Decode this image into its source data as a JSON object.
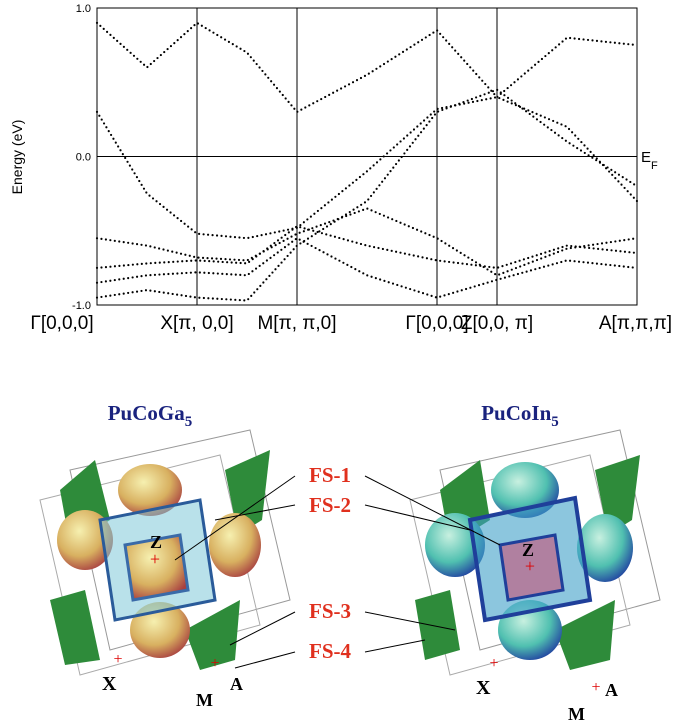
{
  "chart_data": {
    "type": "line",
    "y_label": "Energy (eV)",
    "annotation": {
      "main": "E",
      "sub": "F"
    },
    "x": [
      0,
      0.5,
      1,
      1.5,
      2,
      2.7,
      3.4,
      4,
      4.7,
      5.4
    ],
    "xlim": [
      0,
      5.4
    ],
    "xticks": [
      {
        "value": 0,
        "label": "Γ[0,0,0]"
      },
      {
        "value": 1,
        "label": "X[π, 0,0]"
      },
      {
        "value": 2,
        "label": "M[π, π,0]"
      },
      {
        "value": 3.4,
        "label": "Γ[0,0,0]"
      },
      {
        "value": 4,
        "label": "Z[0,0, π]"
      },
      {
        "value": 5.4,
        "label": "A[π,π,π]"
      }
    ],
    "ylim": [
      -1,
      1
    ],
    "yticks": [
      {
        "value": 1,
        "label": "1.0"
      },
      {
        "value": 0,
        "label": "0.0"
      },
      {
        "value": -1,
        "label": "-1.0"
      }
    ],
    "color": "#000000",
    "series": [
      {
        "values": [
          0.3,
          -0.25,
          -0.52,
          -0.55,
          -0.48,
          -0.1,
          0.32,
          0.4,
          0.2,
          -0.3
        ]
      },
      {
        "values": [
          -0.55,
          -0.6,
          -0.68,
          -0.7,
          -0.52,
          -0.35,
          -0.55,
          -0.8,
          -0.62,
          -0.55
        ]
      },
      {
        "values": [
          -0.75,
          -0.72,
          -0.7,
          -0.72,
          -0.47,
          -0.6,
          -0.7,
          -0.75,
          -0.6,
          -0.65
        ]
      },
      {
        "values": [
          -0.85,
          -0.8,
          -0.78,
          -0.8,
          -0.55,
          -0.8,
          -0.95,
          -0.83,
          -0.7,
          -0.75
        ]
      },
      {
        "values": [
          0.9,
          0.6,
          0.9,
          0.7,
          0.3,
          0.55,
          0.85,
          0.4,
          0.8,
          0.75
        ]
      },
      {
        "values": [
          -0.95,
          -0.9,
          -0.95,
          -0.97,
          -0.6,
          -0.3,
          0.3,
          0.45,
          0.1,
          -0.2
        ]
      }
    ]
  },
  "fermi_panels": [
    {
      "title": "PuCoGa",
      "title_sub": "5",
      "points": [
        "Z",
        "X",
        "M",
        "A"
      ]
    },
    {
      "title": "PuCoIn",
      "title_sub": "5",
      "points": [
        "Z",
        "X",
        "M",
        "A"
      ]
    }
  ],
  "surface_labels": [
    "FS-1",
    "FS-2",
    "FS-3",
    "FS-4"
  ]
}
